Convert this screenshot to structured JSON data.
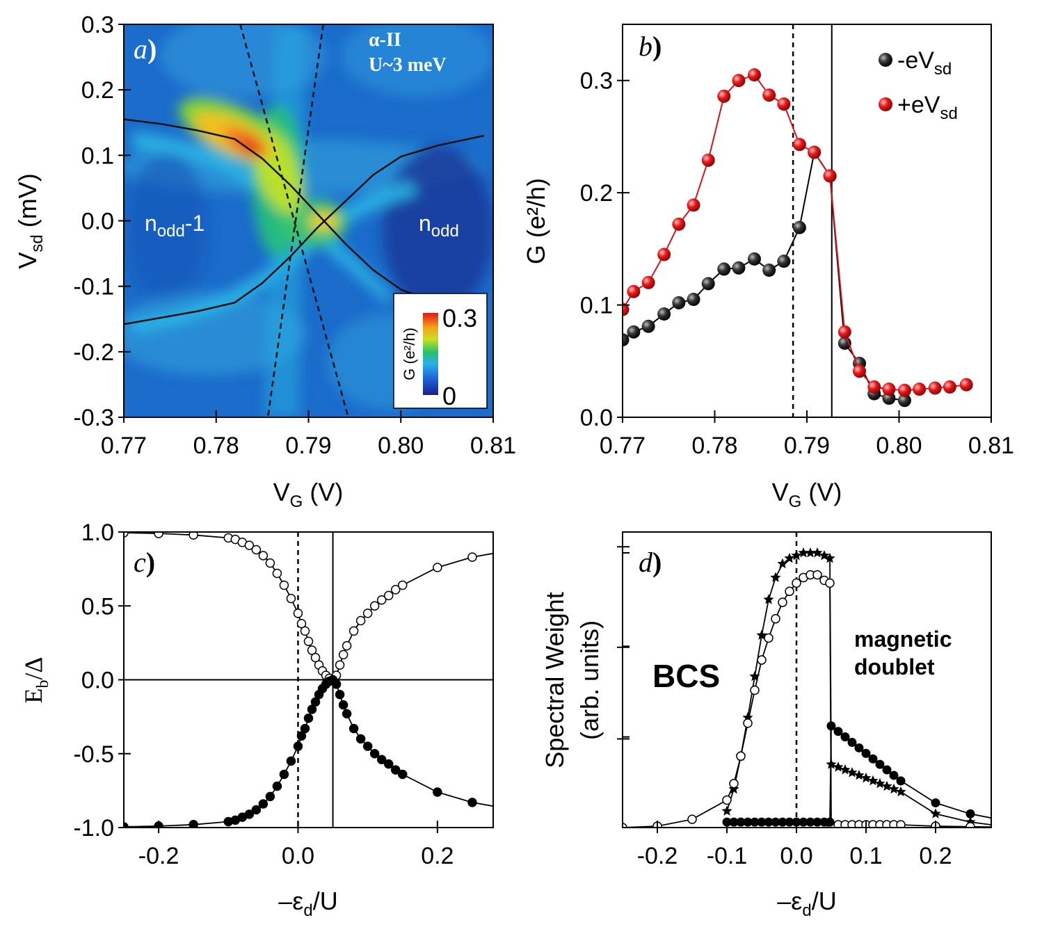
{
  "chart_data": [
    {
      "panel": "a",
      "type": "heatmap",
      "panel_label": "a",
      "annotation_line1": "α-II",
      "annotation_line2": "U~3 meV",
      "region_left_base": "n",
      "region_left_sub": "odd",
      "region_left_suffix": "-1",
      "region_right_base": "n",
      "region_right_sub": "odd",
      "xlabel_base": "V",
      "xlabel_sub": "G",
      "xlabel_unit": " (V)",
      "ylabel_base": "V",
      "ylabel_sub": "sd",
      "ylabel_unit": " (mV)",
      "xlim": [
        0.77,
        0.81
      ],
      "ylim": [
        -0.3,
        0.3
      ],
      "xticks": [
        "0.77",
        "0.78",
        "0.79",
        "0.80",
        "0.81"
      ],
      "yticks": [
        "0.3",
        "0.2",
        "0.1",
        "0.0",
        "-0.1",
        "-0.2",
        "-0.3"
      ],
      "colorbar": {
        "label": "G (e²/h)",
        "max_label": "0.3",
        "min_label": "0",
        "range": [
          0,
          0.3
        ]
      },
      "solid_curve_1": [
        [
          0.77,
          0.155
        ],
        [
          0.774,
          0.148
        ],
        [
          0.778,
          0.138
        ],
        [
          0.782,
          0.125
        ],
        [
          0.785,
          0.095
        ],
        [
          0.788,
          0.055
        ],
        [
          0.791,
          0.01
        ],
        [
          0.794,
          -0.035
        ],
        [
          0.797,
          -0.075
        ],
        [
          0.8,
          -0.105
        ],
        [
          0.803,
          -0.12
        ]
      ],
      "solid_curve_2": [
        [
          0.77,
          -0.158
        ],
        [
          0.774,
          -0.148
        ],
        [
          0.778,
          -0.138
        ],
        [
          0.782,
          -0.125
        ],
        [
          0.785,
          -0.095
        ],
        [
          0.788,
          -0.055
        ],
        [
          0.791,
          -0.01
        ],
        [
          0.794,
          0.03
        ],
        [
          0.797,
          0.07
        ],
        [
          0.8,
          0.098
        ],
        [
          0.804,
          0.115
        ],
        [
          0.809,
          0.13
        ]
      ],
      "dashed_line_1": [
        [
          0.7826,
          0.3
        ],
        [
          0.7943,
          -0.3
        ]
      ],
      "dashed_line_2": [
        [
          0.7916,
          0.3
        ],
        [
          0.7856,
          -0.3
        ]
      ]
    },
    {
      "panel": "b",
      "type": "line",
      "panel_label": "b",
      "xlabel_base": "V",
      "xlabel_sub": "G",
      "xlabel_unit": " (V)",
      "ylabel": "G (e²/h)",
      "xlim": [
        0.77,
        0.81
      ],
      "ylim": [
        0.0,
        0.35
      ],
      "xticks": [
        "0.77",
        "0.78",
        "0.79",
        "0.80",
        "0.81"
      ],
      "yticks": [
        "0.0",
        "0.1",
        "0.2",
        "0.3"
      ],
      "vline_dashed": 0.7885,
      "vline_solid": 0.7927,
      "series": [
        {
          "name": "-eV",
          "name_sub": "sd",
          "color": "#222222",
          "x": [
            0.77,
            0.7712,
            0.7728,
            0.7745,
            0.7761,
            0.7777,
            0.7793,
            0.781,
            0.7826,
            0.7843,
            0.7859,
            0.7875,
            0.7892,
            0.7908,
            0.7925,
            0.7941,
            0.7957,
            0.7973,
            0.7989,
            0.8006
          ],
          "y": [
            0.069,
            0.076,
            0.081,
            0.092,
            0.102,
            0.105,
            0.119,
            0.132,
            0.133,
            0.141,
            0.131,
            0.139,
            0.169,
            0.236,
            0.215,
            0.066,
            0.048,
            0.021,
            0.017,
            0.015
          ]
        },
        {
          "name": "+eV",
          "name_sub": "sd",
          "color": "#e41a1c",
          "x": [
            0.77,
            0.7712,
            0.7728,
            0.7745,
            0.7761,
            0.7777,
            0.7793,
            0.781,
            0.7826,
            0.7843,
            0.7859,
            0.7875,
            0.7892,
            0.7908,
            0.7925,
            0.7941,
            0.7957,
            0.7973,
            0.7989,
            0.8006,
            0.8022,
            0.8039,
            0.8055,
            0.8073
          ],
          "y": [
            0.096,
            0.112,
            0.12,
            0.145,
            0.172,
            0.189,
            0.229,
            0.286,
            0.3,
            0.305,
            0.287,
            0.279,
            0.243,
            0.236,
            0.215,
            0.076,
            0.041,
            0.027,
            0.025,
            0.024,
            0.025,
            0.026,
            0.027,
            0.029
          ]
        }
      ]
    },
    {
      "panel": "c",
      "type": "line",
      "panel_label": "c",
      "xlabel_prefix": "–ε",
      "xlabel_sub": "d",
      "xlabel_suffix": "/U",
      "ylabel_base": "E",
      "ylabel_sub": "b",
      "ylabel_suffix": "/Δ",
      "xlim": [
        -0.25,
        0.28
      ],
      "ylim": [
        -1.0,
        1.0
      ],
      "xticks": [
        "-0.2",
        "0.0",
        "0.2"
      ],
      "yticks": [
        "1.0",
        "0.5",
        "0.0",
        "-0.5",
        "-1.0"
      ],
      "vline_dashed": 0.0,
      "vline_solid": 0.05,
      "hline": 0.0,
      "series": [
        {
          "name": "upper branch (open)",
          "x": [
            -0.25,
            -0.2,
            -0.15,
            -0.1,
            -0.09,
            -0.08,
            -0.07,
            -0.06,
            -0.05,
            -0.04,
            -0.03,
            -0.02,
            -0.01,
            0.0,
            0.005,
            0.01,
            0.015,
            0.02,
            0.025,
            0.03,
            0.035,
            0.04,
            0.045,
            0.05,
            0.055,
            0.06,
            0.065,
            0.07,
            0.08,
            0.09,
            0.1,
            0.11,
            0.12,
            0.13,
            0.14,
            0.15,
            0.2,
            0.25
          ],
          "y": [
            0.995,
            0.99,
            0.98,
            0.96,
            0.95,
            0.93,
            0.91,
            0.88,
            0.84,
            0.79,
            0.72,
            0.64,
            0.55,
            0.45,
            0.38,
            0.33,
            0.26,
            0.2,
            0.15,
            0.1,
            0.06,
            0.03,
            0.01,
            0.0,
            0.03,
            0.1,
            0.17,
            0.23,
            0.33,
            0.4,
            0.45,
            0.5,
            0.54,
            0.57,
            0.61,
            0.64,
            0.76,
            0.83
          ]
        },
        {
          "name": "lower branch (filled)",
          "x": [
            -0.25,
            -0.2,
            -0.15,
            -0.1,
            -0.09,
            -0.08,
            -0.07,
            -0.06,
            -0.05,
            -0.04,
            -0.03,
            -0.02,
            -0.01,
            0.0,
            0.005,
            0.01,
            0.015,
            0.02,
            0.025,
            0.03,
            0.035,
            0.04,
            0.045,
            0.05,
            0.055,
            0.06,
            0.065,
            0.07,
            0.08,
            0.09,
            0.1,
            0.11,
            0.12,
            0.13,
            0.14,
            0.15,
            0.2,
            0.25
          ],
          "y": [
            -0.995,
            -0.99,
            -0.98,
            -0.96,
            -0.95,
            -0.93,
            -0.91,
            -0.88,
            -0.84,
            -0.79,
            -0.72,
            -0.64,
            -0.55,
            -0.45,
            -0.38,
            -0.33,
            -0.26,
            -0.2,
            -0.15,
            -0.1,
            -0.06,
            -0.03,
            -0.01,
            0.0,
            -0.03,
            -0.1,
            -0.17,
            -0.23,
            -0.33,
            -0.4,
            -0.45,
            -0.5,
            -0.54,
            -0.57,
            -0.61,
            -0.64,
            -0.76,
            -0.83
          ]
        }
      ]
    },
    {
      "panel": "d",
      "type": "line",
      "panel_label": "d",
      "xlabel_prefix": "–ε",
      "xlabel_sub": "d",
      "xlabel_suffix": "/U",
      "ylabel_line1": "Spectral Weight",
      "ylabel_line2": "(arb. units)",
      "label_bcs": "BCS",
      "label_md_1": "magnetic",
      "label_md_2": "doublet",
      "xlim": [
        -0.25,
        0.28
      ],
      "ylim": [
        0,
        1.0
      ],
      "xticks": [
        "-0.2",
        "-0.1",
        "0.0",
        "0.1",
        "0.2"
      ],
      "vline_dashed": 0.0,
      "series": [
        {
          "name": "stars",
          "x": [
            -0.1,
            -0.09,
            -0.08,
            -0.07,
            -0.06,
            -0.05,
            -0.04,
            -0.03,
            -0.02,
            -0.01,
            0.0,
            0.01,
            0.02,
            0.03,
            0.04,
            0.048,
            0.05,
            0.06,
            0.07,
            0.08,
            0.09,
            0.1,
            0.11,
            0.12,
            0.13,
            0.14,
            0.15,
            0.2,
            0.25
          ],
          "y": [
            0.06,
            0.14,
            0.26,
            0.4,
            0.55,
            0.7,
            0.83,
            0.91,
            0.96,
            0.98,
            0.99,
            1.0,
            1.0,
            1.0,
            0.99,
            0.98,
            0.23,
            0.22,
            0.21,
            0.2,
            0.19,
            0.18,
            0.17,
            0.16,
            0.15,
            0.14,
            0.13,
            0.05,
            0.02
          ]
        },
        {
          "name": "open",
          "x": [
            -0.25,
            -0.2,
            -0.15,
            -0.1,
            -0.09,
            -0.08,
            -0.07,
            -0.06,
            -0.05,
            -0.04,
            -0.03,
            -0.02,
            -0.01,
            0.0,
            0.01,
            0.02,
            0.03,
            0.04,
            0.048,
            0.05,
            0.06,
            0.07,
            0.08,
            0.09,
            0.1,
            0.11,
            0.12,
            0.13,
            0.14,
            0.15,
            0.2,
            0.25
          ],
          "y": [
            0.0,
            0.005,
            0.03,
            0.1,
            0.16,
            0.26,
            0.38,
            0.5,
            0.61,
            0.69,
            0.76,
            0.82,
            0.86,
            0.89,
            0.91,
            0.92,
            0.92,
            0.9,
            0.89,
            0.01,
            0.01,
            0.01,
            0.01,
            0.01,
            0.01,
            0.01,
            0.01,
            0.01,
            0.01,
            0.01,
            0.005,
            0.003
          ]
        },
        {
          "name": "filled",
          "x": [
            -0.1,
            -0.09,
            -0.08,
            -0.07,
            -0.06,
            -0.05,
            -0.04,
            -0.03,
            -0.02,
            -0.01,
            0.0,
            0.01,
            0.02,
            0.03,
            0.04,
            0.048,
            0.05,
            0.06,
            0.07,
            0.08,
            0.09,
            0.1,
            0.11,
            0.12,
            0.13,
            0.14,
            0.15,
            0.2,
            0.25
          ],
          "y": [
            0.02,
            0.02,
            0.02,
            0.02,
            0.02,
            0.02,
            0.02,
            0.02,
            0.02,
            0.02,
            0.02,
            0.02,
            0.02,
            0.02,
            0.02,
            0.02,
            0.37,
            0.35,
            0.33,
            0.31,
            0.29,
            0.27,
            0.25,
            0.23,
            0.21,
            0.19,
            0.17,
            0.09,
            0.05
          ]
        }
      ]
    }
  ]
}
